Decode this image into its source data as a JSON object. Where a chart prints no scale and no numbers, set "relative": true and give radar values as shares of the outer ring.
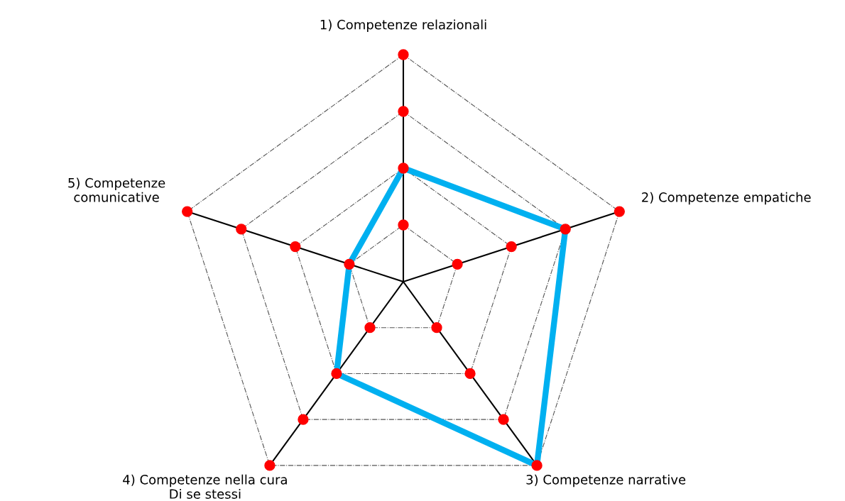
{
  "chart_data": {
    "type": "radar",
    "relative": true,
    "grid": true,
    "categories": [
      "1) Competenze relazionali",
      "2) Competenze empatiche",
      "3) Competenze narrative",
      "4) Competenze nella cura\nDi se stessi",
      "5) Competenze\ncomunicative"
    ],
    "series": [
      {
        "color": "#00b0f0",
        "marker": "none",
        "line_style": "solid",
        "values": [
          0.5,
          0.75,
          1,
          0.5,
          0.25
        ]
      }
    ]
  }
}
